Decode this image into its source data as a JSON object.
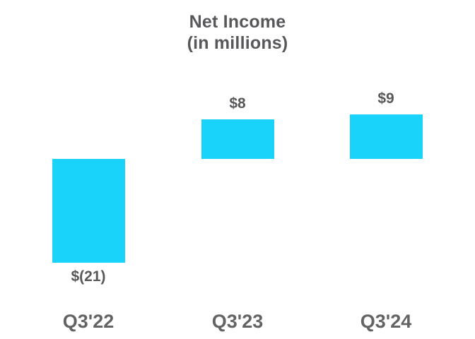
{
  "chart_data": {
    "type": "bar",
    "title": "Net Income",
    "subtitle": "(in millions)",
    "categories": [
      "Q3'22",
      "Q3'23",
      "Q3'24"
    ],
    "values": [
      -21,
      8,
      9
    ],
    "value_labels": [
      "$(21)",
      "$8",
      "$9"
    ],
    "ylabel": "",
    "xlabel": "",
    "ylim": [
      -21,
      9
    ],
    "grid": false,
    "legend": false,
    "bar_color": "#19D3FB",
    "title_color": "#58585B",
    "value_label_color": "#58585B",
    "axis_label_color": "#636363"
  }
}
